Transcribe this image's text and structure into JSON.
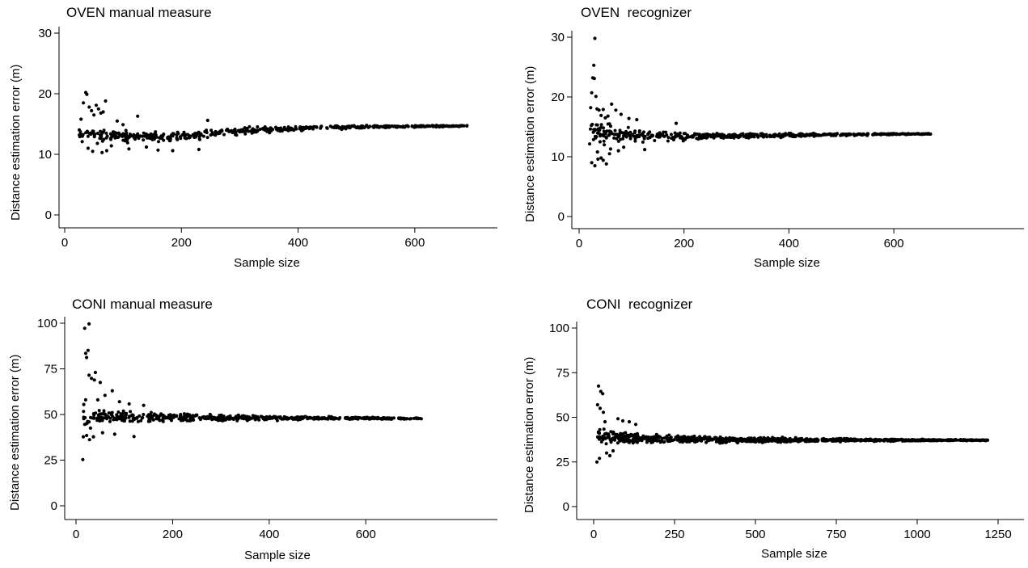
{
  "chart_data": [
    {
      "type": "scatter",
      "title": "OVEN manual measure",
      "xlabel": "Sample size",
      "ylabel": "Distance estimation error (m)",
      "xlim": [
        0,
        700
      ],
      "ylim": [
        0,
        30
      ],
      "xticks": [
        0,
        200,
        400,
        600
      ],
      "yticks": [
        0,
        10,
        20,
        30
      ],
      "xrange": [
        25,
        690
      ],
      "early": [
        [
          28,
          15.8
        ],
        [
          32,
          18.5
        ],
        [
          36,
          20.2
        ],
        [
          38,
          19.9
        ],
        [
          42,
          17.8
        ],
        [
          46,
          17.2
        ],
        [
          50,
          16.5
        ],
        [
          54,
          18.1
        ],
        [
          58,
          17.5
        ],
        [
          62,
          16.8
        ],
        [
          66,
          17.0
        ],
        [
          70,
          18.8
        ],
        [
          30,
          12.1
        ],
        [
          40,
          11.0
        ],
        [
          48,
          10.5
        ],
        [
          56,
          11.8
        ],
        [
          64,
          10.3
        ],
        [
          72,
          10.6
        ],
        [
          80,
          11.4
        ],
        [
          90,
          15.5
        ],
        [
          100,
          14.9
        ],
        [
          125,
          16.3
        ],
        [
          110,
          10.9
        ],
        [
          140,
          11.2
        ],
        [
          160,
          10.7
        ],
        [
          185,
          10.6
        ],
        [
          230,
          10.8
        ],
        [
          245,
          15.6
        ]
      ],
      "bands": [
        [
          25,
          13.5,
          1.5
        ],
        [
          100,
          13.0,
          1.3
        ],
        [
          200,
          12.9,
          1.0
        ],
        [
          300,
          13.9,
          0.8
        ],
        [
          400,
          14.3,
          0.55
        ],
        [
          500,
          14.5,
          0.35
        ],
        [
          600,
          14.6,
          0.2
        ],
        [
          690,
          14.7,
          0.1
        ]
      ],
      "count": 560
    },
    {
      "type": "scatter",
      "title": "OVEN  recognizer",
      "xlabel": "Sample size",
      "ylabel": "Distance estimation error (m)",
      "xlim": [
        0,
        700
      ],
      "ylim": [
        0,
        30
      ],
      "xticks": [
        0,
        200,
        400,
        600
      ],
      "yticks": [
        0,
        10,
        20,
        30
      ],
      "xrange": [
        20,
        670
      ],
      "early": [
        [
          30,
          29.8
        ],
        [
          28,
          25.3
        ],
        [
          26,
          23.2
        ],
        [
          29,
          23.1
        ],
        [
          24,
          20.7
        ],
        [
          32,
          20.1
        ],
        [
          22,
          18.2
        ],
        [
          34,
          18.0
        ],
        [
          38,
          17.8
        ],
        [
          42,
          16.9
        ],
        [
          46,
          17.9
        ],
        [
          50,
          16.5
        ],
        [
          55,
          16.8
        ],
        [
          58,
          15.5
        ],
        [
          62,
          18.8
        ],
        [
          70,
          17.8
        ],
        [
          80,
          17.1
        ],
        [
          24,
          9.0
        ],
        [
          30,
          8.5
        ],
        [
          36,
          9.6
        ],
        [
          42,
          9.8
        ],
        [
          46,
          9.4
        ],
        [
          52,
          8.8
        ],
        [
          58,
          10.5
        ],
        [
          35,
          10.8
        ],
        [
          40,
          12.5
        ],
        [
          48,
          12.0
        ],
        [
          60,
          11.3
        ],
        [
          75,
          11.0
        ],
        [
          85,
          11.6
        ],
        [
          95,
          16.4
        ],
        [
          110,
          16.2
        ],
        [
          125,
          11.2
        ],
        [
          185,
          15.6
        ]
      ],
      "bands": [
        [
          20,
          14.0,
          2.5
        ],
        [
          100,
          13.6,
          1.3
        ],
        [
          200,
          13.4,
          0.8
        ],
        [
          300,
          13.5,
          0.55
        ],
        [
          400,
          13.6,
          0.4
        ],
        [
          500,
          13.7,
          0.3
        ],
        [
          600,
          13.8,
          0.15
        ],
        [
          670,
          13.8,
          0.1
        ]
      ],
      "count": 560
    },
    {
      "type": "scatter",
      "title": "CONI manual measure",
      "xlabel": "Sample size",
      "ylabel": "Distance estimation error (m)",
      "xlim": [
        0,
        700
      ],
      "ylim": [
        0,
        100
      ],
      "xticks": [
        0,
        200,
        400,
        600
      ],
      "yticks": [
        0,
        25,
        50,
        75,
        100
      ],
      "xrange": [
        15,
        715
      ],
      "early": [
        [
          14,
          25.3
        ],
        [
          18,
          97.2
        ],
        [
          27,
          99.6
        ],
        [
          20,
          83.5
        ],
        [
          22,
          81.2
        ],
        [
          25,
          85.1
        ],
        [
          27,
          71.5
        ],
        [
          32,
          69.8
        ],
        [
          38,
          68.9
        ],
        [
          40,
          73.0
        ],
        [
          50,
          67.5
        ],
        [
          75,
          63.0
        ],
        [
          60,
          60.5
        ],
        [
          45,
          58.0
        ],
        [
          15,
          37.8
        ],
        [
          22,
          38.5
        ],
        [
          28,
          36.2
        ],
        [
          36,
          37.8
        ],
        [
          30,
          42.5
        ],
        [
          55,
          40.0
        ],
        [
          80,
          39.2
        ],
        [
          120,
          37.9
        ],
        [
          16,
          55.5
        ],
        [
          20,
          58.0
        ],
        [
          90,
          57.0
        ],
        [
          110,
          55.8
        ],
        [
          140,
          55.0
        ]
      ],
      "bands": [
        [
          15,
          48.5,
          7.0
        ],
        [
          100,
          49.0,
          4.5
        ],
        [
          200,
          48.5,
          3.0
        ],
        [
          300,
          48.0,
          2.2
        ],
        [
          400,
          48.0,
          1.7
        ],
        [
          500,
          48.0,
          1.2
        ],
        [
          600,
          47.9,
          0.8
        ],
        [
          715,
          47.8,
          0.4
        ]
      ],
      "count": 560
    },
    {
      "type": "scatter",
      "title": "CONI  recognizer",
      "xlabel": "Sample size",
      "ylabel": "Distance estimation error (m)",
      "xlim": [
        0,
        1250
      ],
      "ylim": [
        0,
        100
      ],
      "xticks": [
        0,
        250,
        500,
        750,
        1000,
        1250
      ],
      "yticks": [
        0,
        25,
        50,
        75,
        100
      ],
      "xrange": [
        10,
        1220
      ],
      "early": [
        [
          15,
          67.5
        ],
        [
          22,
          64.5
        ],
        [
          28,
          63.2
        ],
        [
          12,
          57.0
        ],
        [
          20,
          55.0
        ],
        [
          30,
          52.8
        ],
        [
          10,
          25.0
        ],
        [
          18,
          27.0
        ],
        [
          40,
          30.0
        ],
        [
          50,
          28.5
        ],
        [
          60,
          31.2
        ],
        [
          35,
          47.5
        ],
        [
          75,
          49.2
        ],
        [
          90,
          48.0
        ],
        [
          110,
          47.5
        ],
        [
          130,
          46.0
        ]
      ],
      "bands": [
        [
          10,
          40.0,
          6.5
        ],
        [
          100,
          38.5,
          4.0
        ],
        [
          250,
          37.8,
          3.0
        ],
        [
          500,
          37.3,
          2.0
        ],
        [
          750,
          37.2,
          1.2
        ],
        [
          1000,
          37.2,
          0.7
        ],
        [
          1220,
          37.2,
          0.4
        ]
      ],
      "count": 900
    }
  ]
}
